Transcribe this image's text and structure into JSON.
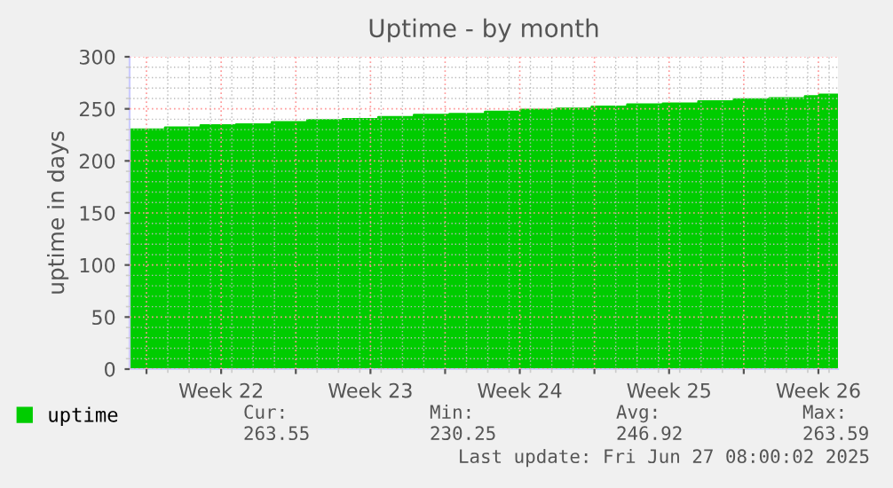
{
  "chart_data": {
    "type": "area",
    "title": "Uptime - by month",
    "ylabel": "uptime in days",
    "x": [
      "2025-05-25T05:00",
      "2025-05-26T21:00",
      "2025-05-28T13:00",
      "2025-05-30T05:00",
      "2025-05-31T21:00",
      "2025-06-02T13:00",
      "2025-06-04T05:00",
      "2025-06-05T21:00",
      "2025-06-07T13:00",
      "2025-06-09T05:00",
      "2025-06-10T21:00",
      "2025-06-12T13:00",
      "2025-06-14T05:00",
      "2025-06-15T21:00",
      "2025-06-17T13:00",
      "2025-06-19T05:00",
      "2025-06-20T21:00",
      "2025-06-22T13:00",
      "2025-06-24T05:00",
      "2025-06-25T21:00",
      "2025-06-26T13:00",
      "2025-06-27T10:00"
    ],
    "series": [
      {
        "name": "uptime",
        "color": "#00cc00",
        "values": [
          230,
          232,
          234,
          235,
          237,
          239,
          240,
          242,
          244,
          245,
          247,
          249,
          250,
          252,
          254,
          255,
          257,
          259,
          260,
          262,
          263.5,
          263.5
        ]
      }
    ],
    "xlim": [
      "2025-05-25T05:00",
      "2025-06-27T10:00"
    ],
    "xticks": [
      {
        "value": "2025-05-26",
        "label": null
      },
      {
        "value": "2025-05-29T12:00",
        "label": "Week 22"
      },
      {
        "value": "2025-06-02",
        "label": null
      },
      {
        "value": "2025-06-05T12:00",
        "label": "Week 23"
      },
      {
        "value": "2025-06-09",
        "label": null
      },
      {
        "value": "2025-06-12T12:00",
        "label": "Week 24"
      },
      {
        "value": "2025-06-16",
        "label": null
      },
      {
        "value": "2025-06-19T12:00",
        "label": "Week 25"
      },
      {
        "value": "2025-06-23",
        "label": null
      },
      {
        "value": "2025-06-26T12:00",
        "label": "Week 26"
      }
    ],
    "ylim": [
      0,
      300
    ],
    "yticks": [
      0,
      50,
      100,
      150,
      200,
      250,
      300
    ],
    "grid": true,
    "legend": "bottom",
    "annotations": [
      "Cur:",
      "263.55",
      "Min:",
      "230.25",
      "Avg:",
      "246.92",
      "Max:",
      "263.59",
      "Last update: Fri Jun 27 08:00:02 2025"
    ]
  }
}
